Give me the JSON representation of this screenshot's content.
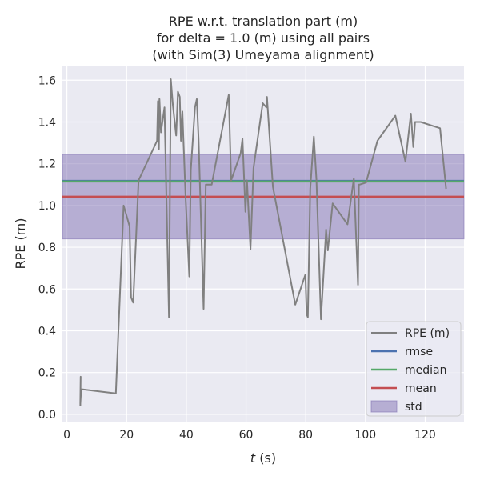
{
  "chart_data": {
    "type": "line",
    "title_lines": [
      "RPE w.r.t. translation part (m)",
      "for delta = 1.0 (m) using all pairs",
      "(with Sim(3) Umeyama alignment)"
    ],
    "xlabel_var": "t",
    "xlabel_unit": " (s)",
    "ylabel": "RPE (m)",
    "xlim": [
      -1.5,
      133
    ],
    "ylim": [
      -0.035,
      1.67
    ],
    "xticks": [
      0,
      20,
      40,
      60,
      80,
      100,
      120
    ],
    "yticks": [
      0.0,
      0.2,
      0.4,
      0.6,
      0.8,
      1.0,
      1.2,
      1.4,
      1.6
    ],
    "background": "#eaeaf2",
    "grid": true,
    "legend_position": "lower-right",
    "series": [
      {
        "name": "RPE (m)",
        "color": "#808080",
        "x": [
          4.5,
          4.6,
          4.5,
          4.8,
          16.4,
          19.0,
          21.0,
          21.5,
          22.2,
          24.0,
          30.2,
          30.5,
          30.8,
          31.0,
          31.5,
          32.7,
          34.2,
          34.8,
          35.5,
          36.6,
          37.2,
          37.8,
          38.2,
          38.7,
          39.0,
          39.8,
          41.0,
          41.5,
          42.9,
          43.5,
          44.1,
          45.8,
          46.5,
          48.5,
          54.2,
          55.0,
          58.2,
          58.8,
          59.8,
          60.3,
          61.5,
          62.5,
          65.6,
          66.8,
          67.0,
          69.0,
          76.5,
          79.9,
          80.3,
          80.7,
          81.5,
          82.7,
          83.6,
          85.1,
          86.8,
          87.4,
          89.0,
          94.0,
          96.1,
          97.5,
          97.8,
          98.0,
          100.2,
          104.0,
          110.0,
          113.4,
          115.2,
          116.0,
          116.6,
          118.5,
          125.0,
          127.0
        ],
        "y": [
          0.04,
          0.18,
          0.05,
          0.12,
          0.1,
          1.0,
          0.9,
          0.56,
          0.535,
          1.12,
          1.31,
          1.5,
          1.27,
          1.51,
          1.35,
          1.47,
          0.465,
          1.605,
          1.48,
          1.335,
          1.545,
          1.52,
          1.31,
          1.45,
          1.32,
          1.03,
          0.66,
          1.17,
          1.47,
          1.51,
          1.32,
          0.505,
          1.1,
          1.1,
          1.53,
          1.12,
          1.25,
          1.32,
          0.97,
          1.12,
          0.79,
          1.18,
          1.49,
          1.47,
          1.52,
          1.09,
          0.525,
          0.67,
          0.48,
          0.465,
          1.08,
          1.33,
          1.12,
          0.455,
          0.885,
          0.785,
          1.01,
          0.91,
          1.13,
          0.62,
          1.1,
          1.1,
          1.11,
          1.31,
          1.43,
          1.21,
          1.44,
          1.28,
          1.4,
          1.4,
          1.37,
          1.08
        ]
      },
      {
        "name": "rmse",
        "color": "#4c72b0",
        "constant": 1.118
      },
      {
        "name": "median",
        "color": "#55a868",
        "constant": 1.115
      },
      {
        "name": "mean",
        "color": "#c44e52",
        "constant": 1.042
      }
    ],
    "std_band": {
      "name": "std",
      "color": "#8172b3",
      "lower": 0.84,
      "upper": 1.245
    }
  }
}
